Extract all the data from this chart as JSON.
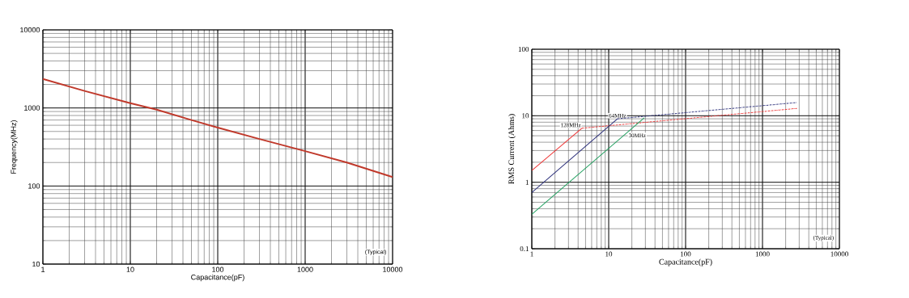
{
  "chart_data": [
    {
      "type": "line",
      "xlabel": "Capacitance(pF)",
      "ylabel": "Frequency(MHz)",
      "log": "xy",
      "grid": true,
      "marker": "none",
      "xlim": [
        1,
        10000
      ],
      "xticks": [
        1,
        10,
        100,
        1000,
        10000
      ],
      "ylim": [
        10,
        10000
      ],
      "yticks": [
        10,
        100,
        1000,
        10000
      ],
      "series": [
        {
          "color": "#c0392b",
          "line_style": "solid",
          "x": [
            1,
            3,
            10,
            20,
            50,
            100,
            300,
            1000,
            3000,
            10000
          ],
          "values": [
            2350,
            1650,
            1150,
            950,
            700,
            560,
            400,
            280,
            200,
            130
          ]
        }
      ],
      "annotations": [
        "(Typical)"
      ]
    },
    {
      "type": "line",
      "xlabel": "Capacitance(pF)",
      "ylabel": "RMS Current (Ahms)",
      "log": "xy",
      "grid": true,
      "marker": "none",
      "xlim": [
        1,
        10000
      ],
      "xticks": [
        1,
        10,
        100,
        1000,
        10000
      ],
      "ylim": [
        0.1,
        100
      ],
      "yticks": [
        0.1,
        1,
        10,
        100
      ],
      "series": [
        {
          "name": "128MHz",
          "color": "#ee3333",
          "line_style": "solid",
          "x": [
            1,
            4.5
          ],
          "values": [
            1.5,
            6.5
          ]
        },
        {
          "color": "#ee3333",
          "line_style": "dashed",
          "x": [
            4.5,
            2800
          ],
          "values": [
            6.5,
            12.9
          ]
        },
        {
          "name": "64MHz",
          "color": "#2b2f7a",
          "line_style": "solid",
          "x": [
            1,
            13
          ],
          "values": [
            0.7,
            9
          ]
        },
        {
          "color": "#2b2f7a",
          "line_style": "dashed",
          "x": [
            13,
            2800
          ],
          "values": [
            9,
            15.8
          ]
        },
        {
          "name": "30MHz",
          "color": "#22a060",
          "line_style": "solid",
          "x": [
            1,
            29
          ],
          "values": [
            0.33,
            9.3
          ]
        }
      ],
      "annotations": [
        "(Typical)"
      ]
    }
  ]
}
